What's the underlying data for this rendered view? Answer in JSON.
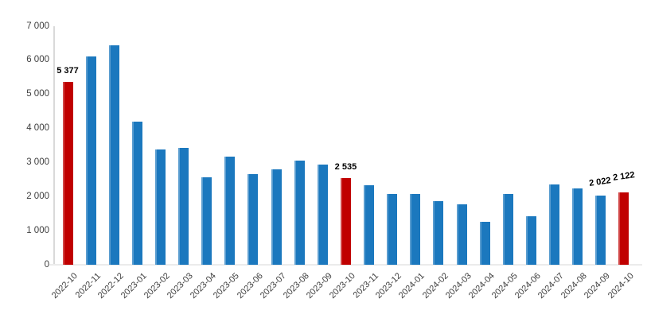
{
  "chart_data": {
    "type": "bar",
    "title": "",
    "xlabel": "",
    "ylabel": "",
    "grid": "off",
    "legend": "none",
    "ylim": [
      0,
      7000
    ],
    "categories": [
      "2022-10",
      "2022-11",
      "2022-12",
      "2023-01",
      "2023-02",
      "2023-03",
      "2023-04",
      "2023-05",
      "2023-06",
      "2023-07",
      "2023-08",
      "2023-09",
      "2023-10",
      "2023-11",
      "2023-12",
      "2024-01",
      "2024-02",
      "2024-03",
      "2024-04",
      "2024-05",
      "2024-06",
      "2024-07",
      "2024-08",
      "2024-09",
      "2024-10"
    ],
    "values": [
      5377,
      6110,
      6435,
      4190,
      3380,
      3440,
      2560,
      3175,
      2650,
      2810,
      3065,
      2930,
      2535,
      2340,
      2070,
      2075,
      1860,
      1775,
      1265,
      2075,
      1435,
      2365,
      2250,
      2022,
      2122
    ],
    "highlight_indices": [
      0,
      12,
      24
    ],
    "value_labels": [
      {
        "index": 0,
        "text": "5 377",
        "tilted": false
      },
      {
        "index": 12,
        "text": "2 535",
        "tilted": false
      },
      {
        "index": 23,
        "text": "2 022",
        "tilted": true
      },
      {
        "index": 24,
        "text": "2 122",
        "tilted": true
      }
    ],
    "y_ticks": [
      {
        "value": 0,
        "label": "0"
      },
      {
        "value": 1000,
        "label": "1 000"
      },
      {
        "value": 2000,
        "label": "2 000"
      },
      {
        "value": 3000,
        "label": "3 000"
      },
      {
        "value": 4000,
        "label": "4 000"
      },
      {
        "value": 5000,
        "label": "5 000"
      },
      {
        "value": 6000,
        "label": "6 000"
      },
      {
        "value": 7000,
        "label": "7 000"
      }
    ],
    "colors": {
      "bar": "#1B78BE",
      "highlight": "#C00000",
      "axis_line": "#D9D9D9",
      "baseline": "#EBEBEB",
      "tick_text": "#404040",
      "value_label_text": "#000000",
      "background": "#FFFFFF"
    }
  }
}
